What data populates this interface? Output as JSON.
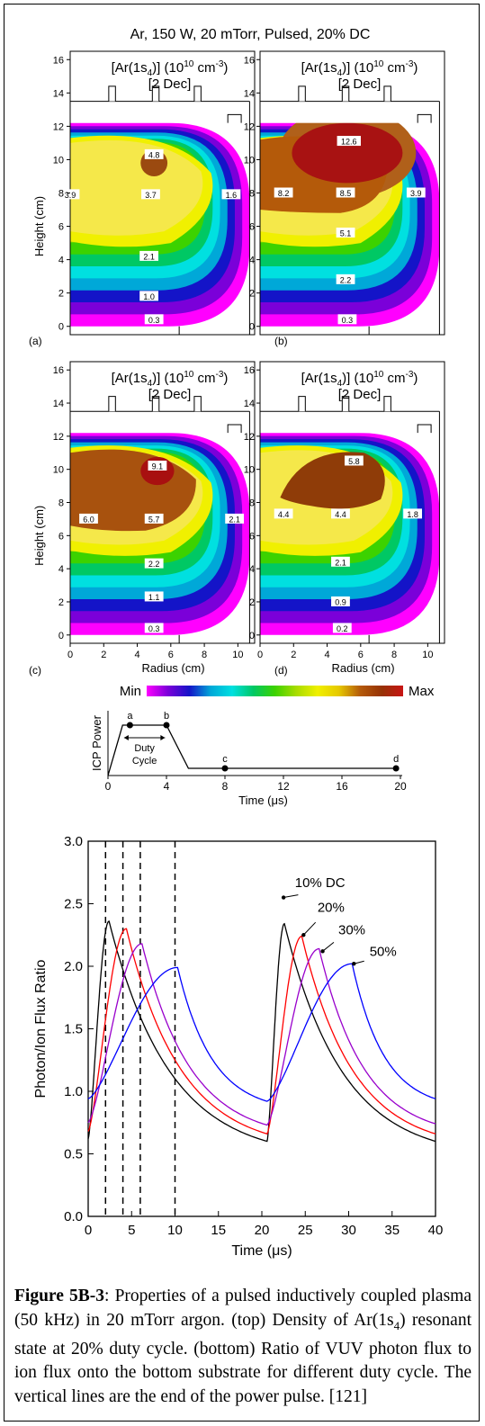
{
  "figure_title": "Ar, 150 W, 20 mTorr, Pulsed, 20% DC",
  "panels": [
    {
      "id": "(a)",
      "title_line1_pre": "[Ar(1s",
      "title_sub": "4",
      "title_line1_mid": ")] (10",
      "title_sup1": "10",
      "title_line1_post": " cm",
      "title_sup2": "-3",
      "title_line1_end": ")",
      "title_line2": "[2 Dec]",
      "levels": [
        {
          "label": "4.8"
        },
        {
          "label": "3.9"
        },
        {
          "label": "3.7"
        },
        {
          "label": "1.6"
        },
        {
          "label": "2.1"
        },
        {
          "label": "1.0"
        },
        {
          "label": "0.3"
        }
      ]
    },
    {
      "id": "(b)",
      "title_line1_pre": "[Ar(1s",
      "title_sub": "4",
      "title_line1_mid": ")] (10",
      "title_sup1": "10",
      "title_line1_post": " cm",
      "title_sup2": "-3",
      "title_line1_end": ")",
      "title_line2": "[2 Dec]",
      "levels": [
        {
          "label": "12.6"
        },
        {
          "label": "8.2"
        },
        {
          "label": "8.5"
        },
        {
          "label": "3.9"
        },
        {
          "label": "5.1"
        },
        {
          "label": "2.2"
        },
        {
          "label": "0.3"
        }
      ]
    },
    {
      "id": "(c)",
      "title_line1_pre": "[Ar(1s",
      "title_sub": "4",
      "title_line1_mid": ")] (10",
      "title_sup1": "10",
      "title_line1_post": " cm",
      "title_sup2": "-3",
      "title_line1_end": ")",
      "title_line2": "[2 Dec]",
      "levels": [
        {
          "label": "9.1"
        },
        {
          "label": "6.0"
        },
        {
          "label": "5.7"
        },
        {
          "label": "2.1"
        },
        {
          "label": "2.2"
        },
        {
          "label": "1.1"
        },
        {
          "label": "0.3"
        }
      ]
    },
    {
      "id": "(d)",
      "title_line1_pre": "[Ar(1s",
      "title_sub": "4",
      "title_line1_mid": ")] (10",
      "title_sup1": "10",
      "title_line1_post": " cm",
      "title_sup2": "-3",
      "title_line1_end": ")",
      "title_line2": "[2 Dec]",
      "levels": [
        {
          "label": "5.8"
        },
        {
          "label": "4.4"
        },
        {
          "label": "4.4"
        },
        {
          "label": "1.8"
        },
        {
          "label": "2.1"
        },
        {
          "label": "0.9"
        },
        {
          "label": "0.2"
        }
      ]
    }
  ],
  "contour_axes": {
    "ylabel": "Height (cm)",
    "xlabel": "Radius (cm)",
    "yticks": [
      "0",
      "2",
      "4",
      "6",
      "8",
      "10",
      "12",
      "14",
      "16"
    ],
    "xticks": [
      "0",
      "2",
      "4",
      "6",
      "8",
      "10"
    ]
  },
  "colorbar": {
    "min_label": "Min",
    "max_label": "Max",
    "colors": [
      "#ff00ff",
      "#7b00d9",
      "#1414c8",
      "#00a8d8",
      "#00e0e0",
      "#00c864",
      "#3cd200",
      "#a8dc00",
      "#f0f000",
      "#e6c800",
      "#b45a0a",
      "#963205",
      "#c81414"
    ]
  },
  "pulse_diagram": {
    "ylabel": "ICP Power",
    "xlabel": "Time (μs)",
    "xticks": [
      "0",
      "4",
      "8",
      "12",
      "16",
      "20"
    ],
    "duty_label_1": "Duty",
    "duty_label_2": "Cycle",
    "points": [
      {
        "label": "a",
        "t": 1.5
      },
      {
        "label": "b",
        "t": 4
      },
      {
        "label": "c",
        "t": 8
      },
      {
        "label": "d",
        "t": 19.7
      }
    ]
  },
  "chart_data": {
    "type": "line",
    "xlabel": "Time (μs)",
    "ylabel": "Photon/Ion Flux Ratio",
    "xlim": [
      0,
      40
    ],
    "ylim": [
      0,
      3.0
    ],
    "xticks": [
      "0",
      "5",
      "10",
      "15",
      "20",
      "25",
      "30",
      "35",
      "40"
    ],
    "yticks": [
      "0.0",
      "0.5",
      "1.0",
      "1.5",
      "2.0",
      "2.5",
      "3.0"
    ],
    "vlines": [
      2,
      4,
      6,
      10
    ],
    "series": [
      {
        "name": "10% DC",
        "color": "#000000",
        "peak": [
          2.4,
          2.36
        ],
        "end": [
          20.6,
          0.6
        ],
        "peak2": [
          22.6,
          2.34
        ],
        "end2": [
          40,
          0.6
        ]
      },
      {
        "name": "20%",
        "color": "#ff0000",
        "peak": [
          4.4,
          2.3
        ],
        "end": [
          20.6,
          0.66
        ],
        "peak2": [
          24.6,
          2.24
        ],
        "end2": [
          40,
          0.66
        ]
      },
      {
        "name": "30%",
        "color": "#9900cc",
        "peak": [
          6.2,
          2.18
        ],
        "end": [
          20.6,
          0.73
        ],
        "peak2": [
          26.6,
          2.14
        ],
        "end2": [
          40,
          0.74
        ]
      },
      {
        "name": "50%",
        "color": "#0000ff",
        "peak": [
          10.3,
          1.99
        ],
        "end": [
          20.6,
          0.92
        ],
        "peak2": [
          30.4,
          2.02
        ],
        "end2": [
          40,
          0.94
        ]
      }
    ]
  },
  "caption": {
    "bold": "Figure 5B-3",
    "text": ": Properties of a pulsed inductively coupled plasma (50 kHz) in 20 mTorr argon. (top) Density of Ar(1s4) resonant state at 20% duty cycle. (bottom) Ratio of VUV photon flux to ion flux onto the bottom substrate for different duty cycle. The vertical lines are the end of the power pulse. [121]"
  }
}
